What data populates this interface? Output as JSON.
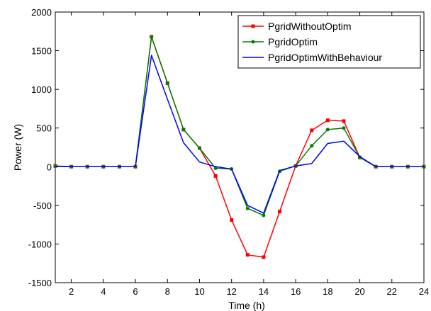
{
  "chart_data": {
    "type": "line",
    "title": "",
    "xlabel": "Time (h)",
    "ylabel": "Power (W)",
    "xlim": [
      1,
      24
    ],
    "ylim": [
      -1500,
      2000
    ],
    "xticks": [
      2,
      4,
      6,
      8,
      10,
      12,
      14,
      16,
      18,
      20,
      22,
      24
    ],
    "yticks": [
      -1500,
      -1000,
      -500,
      0,
      500,
      1000,
      1500,
      2000
    ],
    "grid": false,
    "legend_position": "top-right",
    "x": [
      1,
      2,
      3,
      4,
      5,
      6,
      7,
      8,
      9,
      10,
      11,
      12,
      13,
      14,
      15,
      16,
      17,
      18,
      19,
      20,
      21,
      22,
      23,
      24
    ],
    "series": [
      {
        "name": "PgridWithoutOptim",
        "color": "#ff0000",
        "marker": "square",
        "values": [
          10,
          0,
          0,
          0,
          0,
          0,
          1680,
          1080,
          480,
          240,
          -120,
          -690,
          -1140,
          -1170,
          -580,
          10,
          470,
          600,
          590,
          120,
          0,
          0,
          0,
          0
        ]
      },
      {
        "name": "PgridOptim",
        "color": "#008000",
        "marker": "dot",
        "values": [
          5,
          0,
          0,
          0,
          0,
          0,
          1680,
          1080,
          480,
          240,
          -20,
          -30,
          -540,
          -630,
          -60,
          10,
          270,
          480,
          500,
          120,
          0,
          0,
          0,
          0
        ]
      },
      {
        "name": "PgridOptimWithBehaviour",
        "color": "#0000ff",
        "marker": "none",
        "values": [
          5,
          0,
          0,
          0,
          0,
          0,
          1440,
          870,
          310,
          60,
          0,
          -30,
          -500,
          -600,
          -50,
          10,
          40,
          300,
          330,
          130,
          0,
          0,
          0,
          0
        ]
      }
    ]
  }
}
